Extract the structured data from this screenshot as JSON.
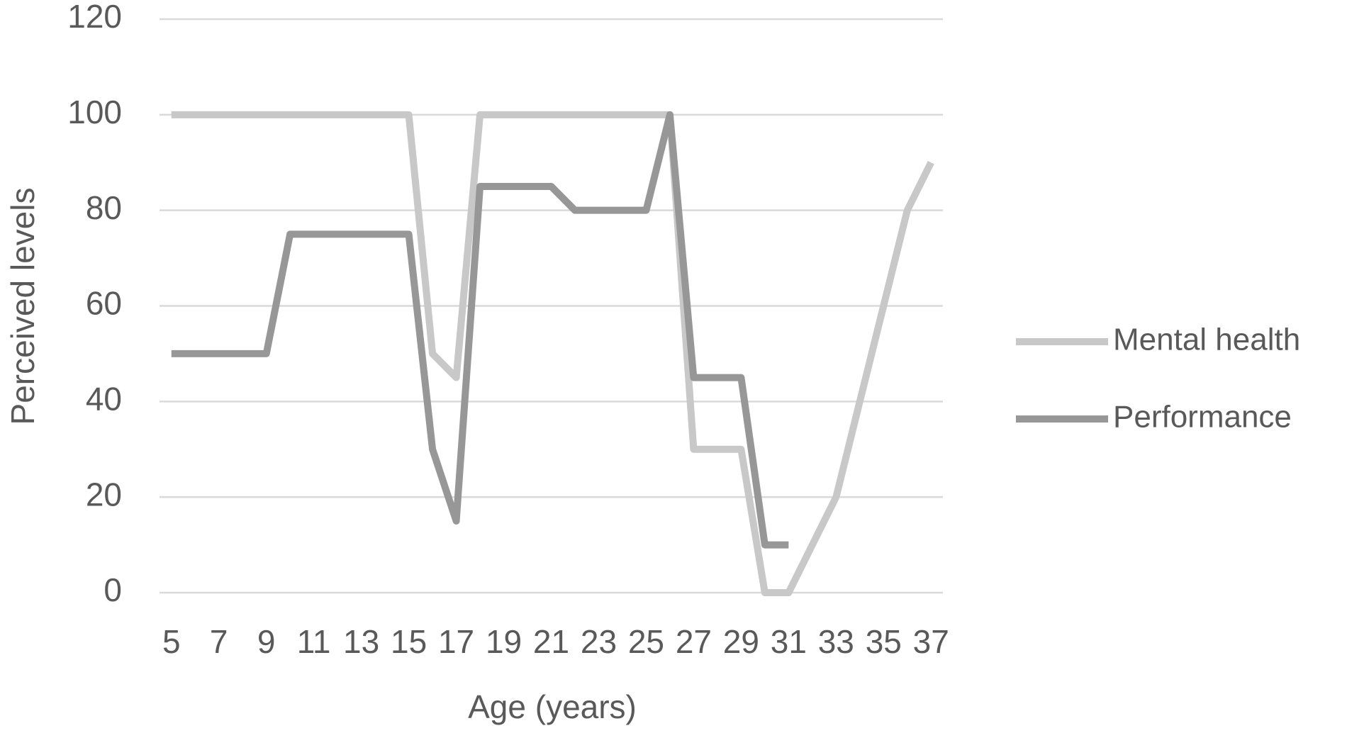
{
  "chart_data": {
    "type": "line",
    "xlabel": "Age (years)",
    "ylabel": "Perceived levels",
    "categories": [
      5,
      null,
      7,
      null,
      9,
      null,
      11,
      null,
      13,
      null,
      15,
      null,
      17,
      null,
      19,
      null,
      21,
      null,
      23,
      null,
      25,
      null,
      27,
      null,
      29,
      null,
      31,
      null,
      33,
      null,
      35,
      null,
      37
    ],
    "series": [
      {
        "name": "Mental health",
        "color": "#c8c8c8",
        "values": [
          100,
          100,
          100,
          100,
          100,
          100,
          100,
          100,
          100,
          100,
          100,
          50,
          45,
          100,
          100,
          100,
          100,
          100,
          100,
          100,
          100,
          100,
          30,
          30,
          30,
          0,
          0,
          10,
          20,
          40,
          60,
          80,
          90
        ]
      },
      {
        "name": "Performance",
        "color": "#979797",
        "values": [
          50,
          50,
          50,
          50,
          50,
          75,
          75,
          75,
          75,
          75,
          75,
          30,
          15,
          85,
          85,
          85,
          85,
          80,
          80,
          80,
          80,
          100,
          45,
          45,
          45,
          10,
          10,
          null,
          null,
          null,
          null,
          null,
          null
        ]
      }
    ],
    "ylim": [
      0,
      120
    ],
    "yticks": [
      0,
      20,
      40,
      60,
      80,
      100,
      120
    ],
    "grid": true,
    "legend": "right"
  }
}
